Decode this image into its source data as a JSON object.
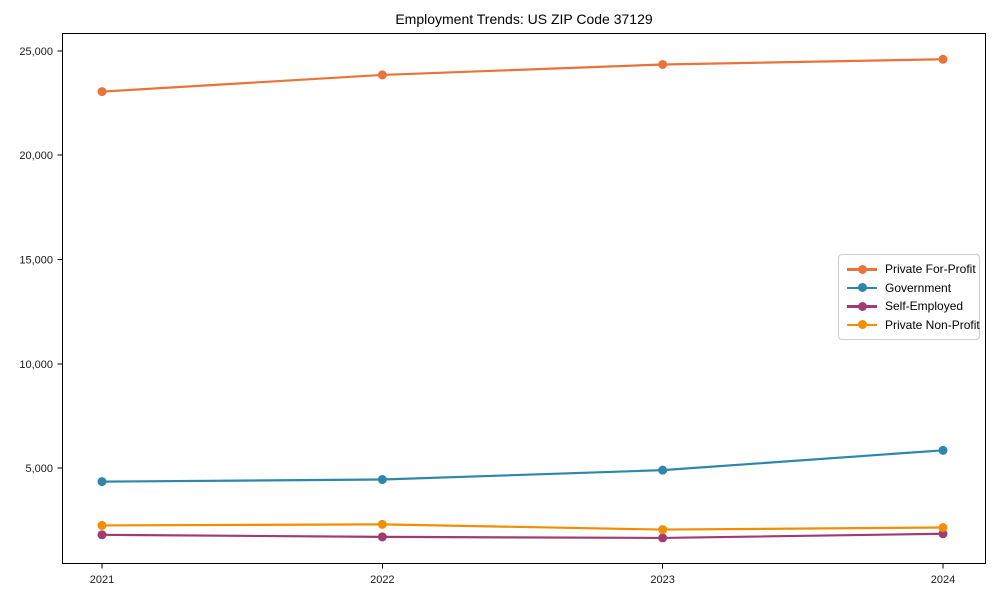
{
  "chart_data": {
    "type": "line",
    "title": "Employment Trends: US ZIP Code 37129",
    "x": [
      "2021",
      "2022",
      "2023",
      "2024"
    ],
    "series": [
      {
        "name": "Private For-Profit",
        "color": "#E8743B",
        "values": [
          23050,
          23850,
          24350,
          24600
        ]
      },
      {
        "name": "Government",
        "color": "#2E86AB",
        "values": [
          4350,
          4450,
          4900,
          5850
        ]
      },
      {
        "name": "Self-Employed",
        "color": "#A23B72",
        "values": [
          1800,
          1700,
          1650,
          1850
        ]
      },
      {
        "name": "Private Non-Profit",
        "color": "#F18F01",
        "values": [
          2250,
          2300,
          2050,
          2150
        ]
      }
    ],
    "xlabel": "",
    "ylabel": "",
    "ylim": [
      400,
      25860
    ],
    "y_ticks": [
      {
        "value": 5000,
        "label": "5,000"
      },
      {
        "value": 10000,
        "label": "10,000"
      },
      {
        "value": 15000,
        "label": "15,000"
      },
      {
        "value": 20000,
        "label": "20,000"
      },
      {
        "value": 25000,
        "label": "25,000"
      }
    ],
    "legend_position": "center-right",
    "grid": false,
    "axis_color": "#000000",
    "tick_label_color": "#1a1a1a"
  }
}
